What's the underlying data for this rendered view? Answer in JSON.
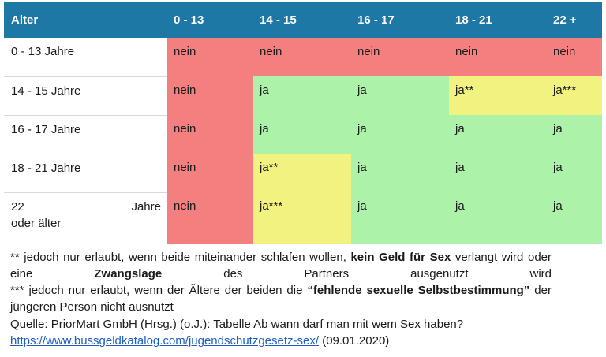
{
  "table": {
    "headers": [
      "Alter",
      "0 - 13",
      "14 - 15",
      "16 - 17",
      "18 - 21",
      "22 +"
    ],
    "rows": [
      {
        "label": "0 - 13 Jahre",
        "cells": [
          {
            "text": "nein",
            "color": "#f47f7f"
          },
          {
            "text": "nein",
            "color": "#f47f7f"
          },
          {
            "text": "nein",
            "color": "#f47f7f"
          },
          {
            "text": "nein",
            "color": "#f47f7f"
          },
          {
            "text": "nein",
            "color": "#f47f7f"
          }
        ]
      },
      {
        "label": "14 - 15 Jahre",
        "cells": [
          {
            "text": "nein",
            "color": "#f47f7f"
          },
          {
            "text": "ja",
            "color": "#acf2a9"
          },
          {
            "text": "ja",
            "color": "#acf2a9"
          },
          {
            "text": "ja**",
            "color": "#f2f281"
          },
          {
            "text": "ja***",
            "color": "#f2f281"
          }
        ]
      },
      {
        "label": "16 - 17 Jahre",
        "cells": [
          {
            "text": "nein",
            "color": "#f47f7f"
          },
          {
            "text": "ja",
            "color": "#acf2a9"
          },
          {
            "text": "ja",
            "color": "#acf2a9"
          },
          {
            "text": "ja",
            "color": "#acf2a9"
          },
          {
            "text": "ja",
            "color": "#acf2a9"
          }
        ]
      },
      {
        "label": "18 - 21 Jahre",
        "cells": [
          {
            "text": "nein",
            "color": "#f47f7f"
          },
          {
            "text": "ja**",
            "color": "#f2f281"
          },
          {
            "text": "ja",
            "color": "#acf2a9"
          },
          {
            "text": "ja",
            "color": "#acf2a9"
          },
          {
            "text": "ja",
            "color": "#acf2a9"
          }
        ]
      },
      {
        "label_part1": "22",
        "label_part2": "Jahre",
        "label_line2": "oder älter",
        "cells": [
          {
            "text": "nein",
            "color": "#f47f7f"
          },
          {
            "text": "ja***",
            "color": "#f2f281"
          },
          {
            "text": "ja",
            "color": "#acf2a9"
          },
          {
            "text": "ja",
            "color": "#acf2a9"
          },
          {
            "text": "ja",
            "color": "#acf2a9"
          }
        ]
      }
    ]
  },
  "notes": {
    "n1_a": "** jedoch nur erlaubt, wenn beide miteinander schlafen wollen, ",
    "n1_b": "kein Geld für Sex",
    "n1_c": " verlangt wird oder eine ",
    "n1_d": "Zwangslage",
    "n1_e": " des Partners ausgenutzt wird",
    "n2_a": "*** jedoch nur erlaubt, wenn der Ältere der beiden die ",
    "n2_b": "“fehlende sexuelle Selbstbestimmung”",
    "n2_c": " der jüngeren Person nicht ausnutzt"
  },
  "source": {
    "text": "Quelle: PriorMart GmbH (Hrsg.) (o.J.): Tabelle Ab wann darf man mit wem Sex haben?",
    "link": "https://www.bussgeldkatalog.com/jugendschutzgesetz-sex/",
    "date": " (09.01.2020)"
  }
}
